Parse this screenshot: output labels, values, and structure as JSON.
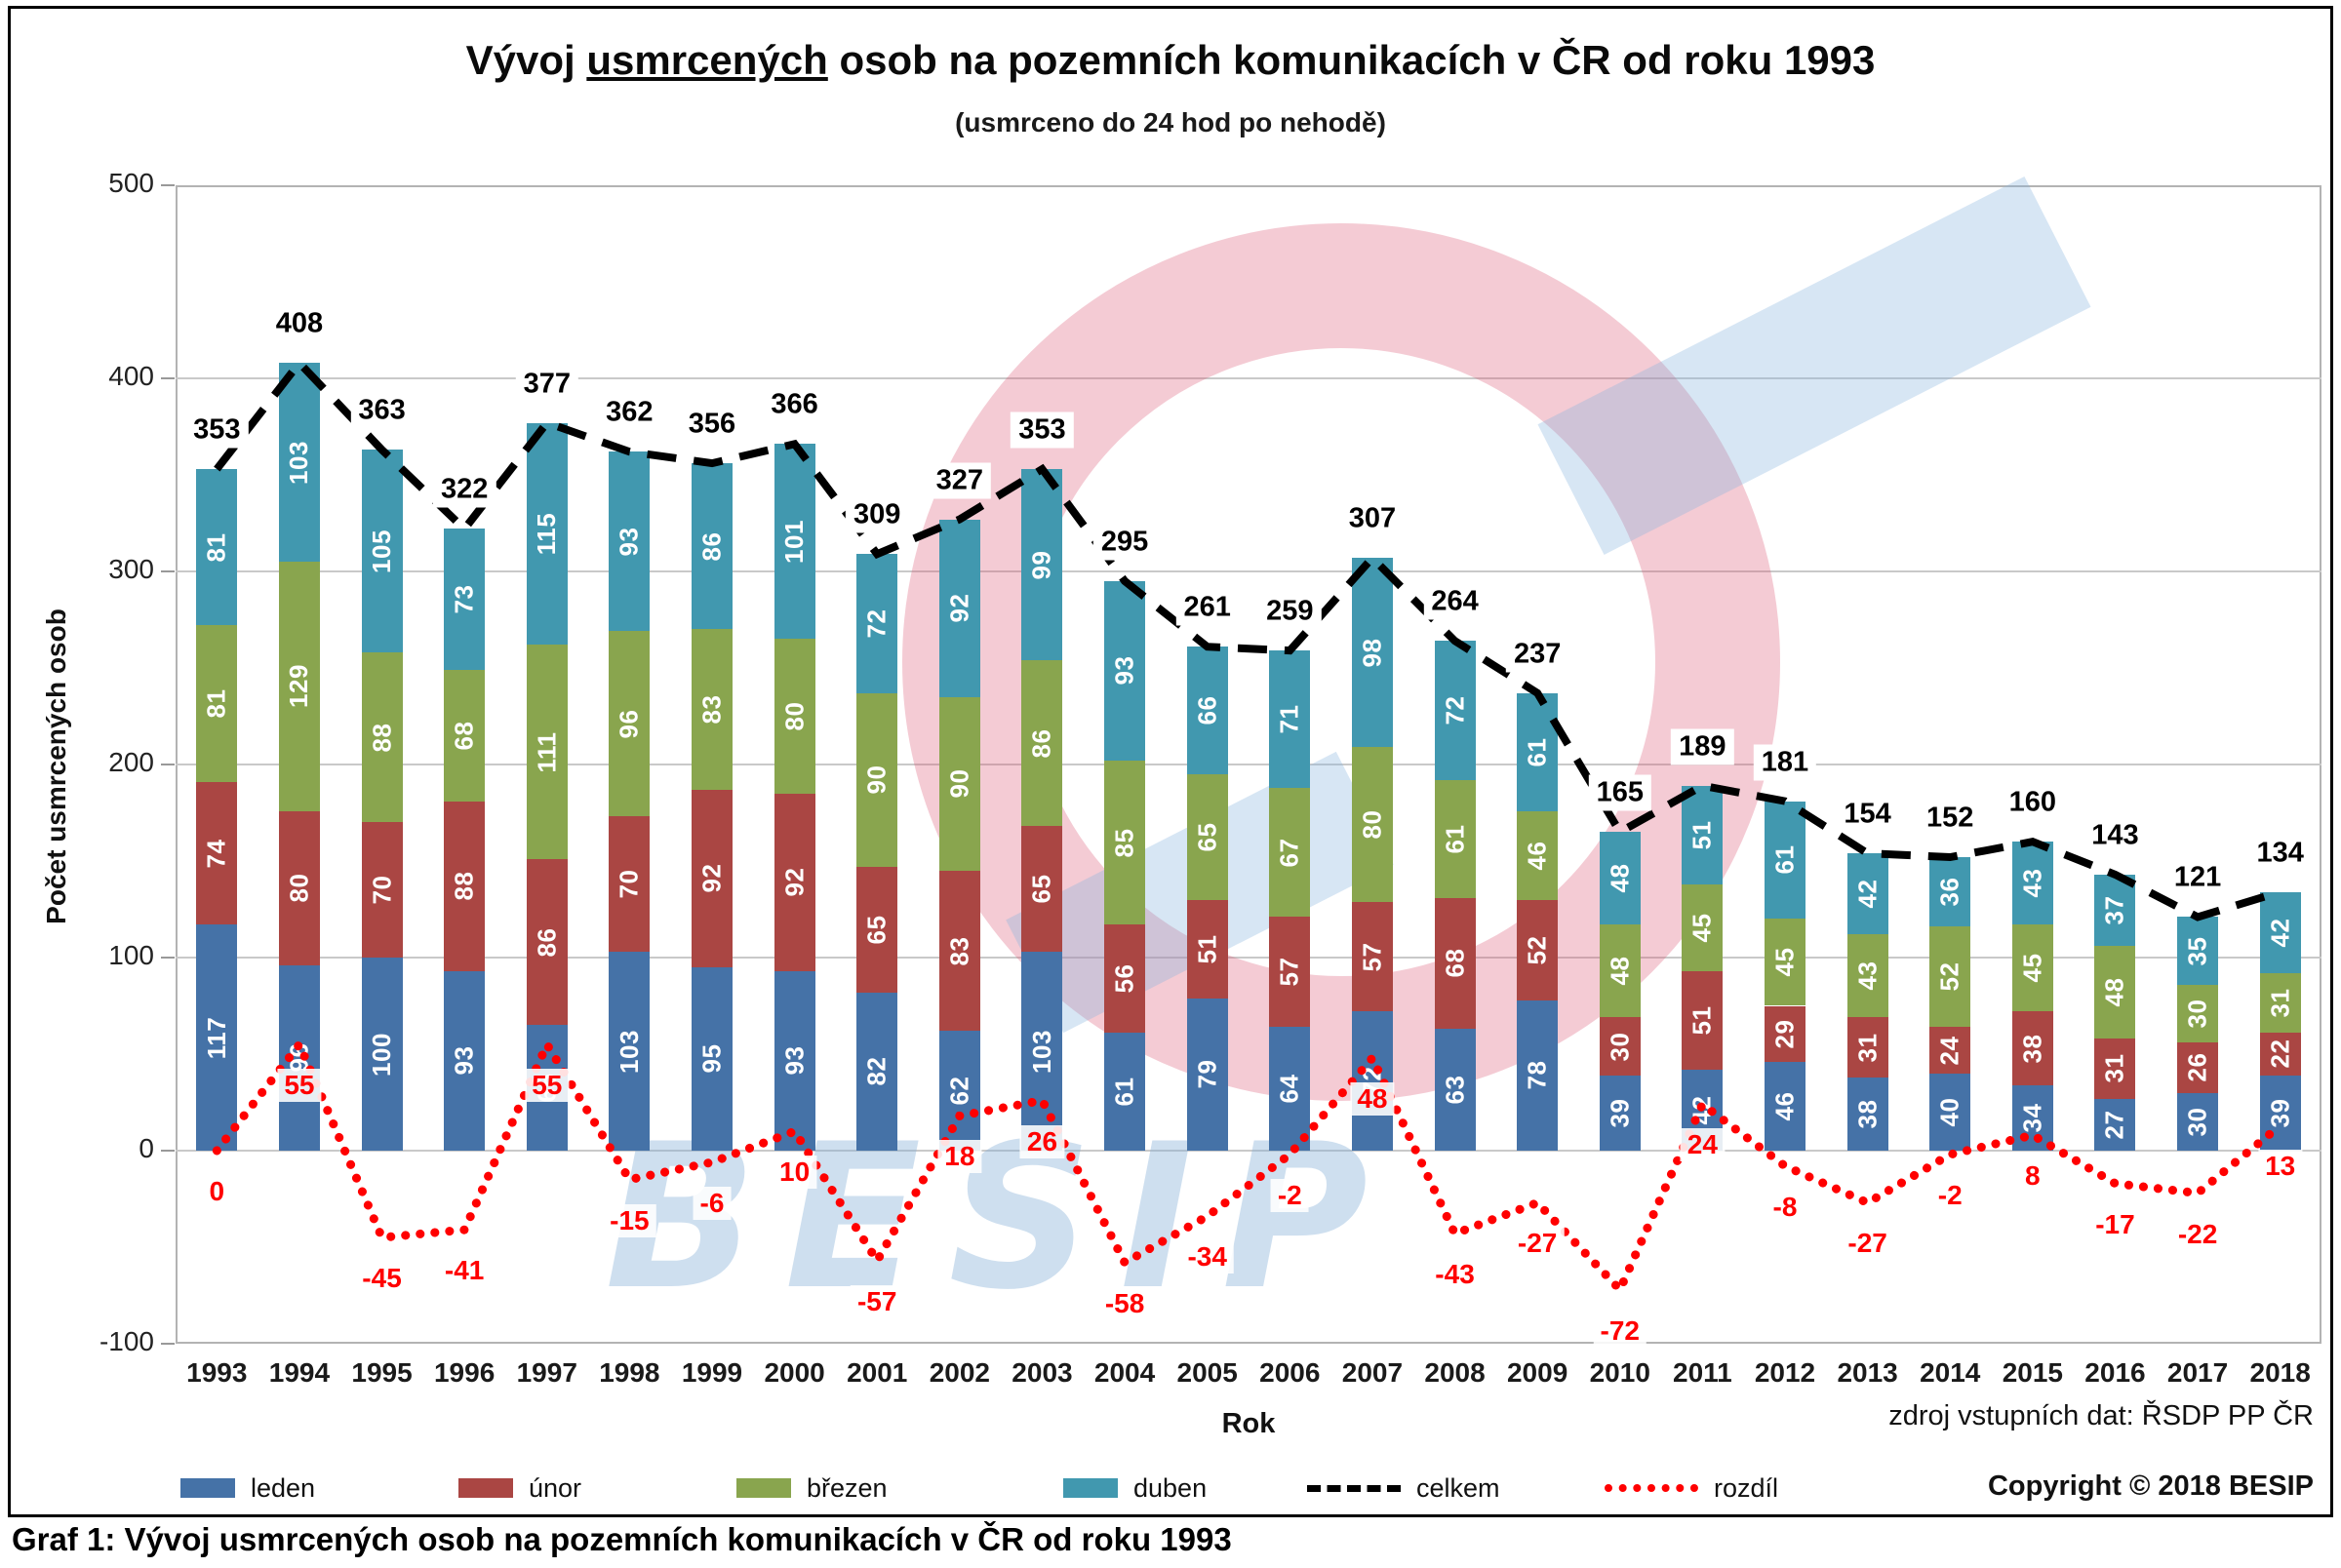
{
  "page": {
    "title_part1": "Vývoj",
    "title_underlined": "usmrcených",
    "title_part2": "osob na pozemních komunikacích v ČR od roku 1993",
    "subtitle": "(usmrceno do 24 hod po nehodě)",
    "source": "zdroj vstupních dat: ŘSDP PP ČR",
    "copyright": "Copyright © 2018 BESIP",
    "caption": "Graf 1: Vývoj usmrcených osob na pozemních komunikacích v ČR od roku 1993",
    "watermark_text": "BESIP"
  },
  "chart_data": {
    "type": "bar",
    "subtype": "stacked-bars-with-total-and-difference-lines",
    "title": "Vývoj usmrcených osob na pozemních komunikacích v ČR od roku 1993",
    "subtitle": "(usmrceno do 24 hod po nehodě)",
    "xlabel": "Rok",
    "ylabel": "Počet usmrcených osob",
    "ylim": [
      -100,
      500
    ],
    "yticks": [
      500,
      400,
      300,
      200,
      100,
      0,
      -100
    ],
    "grid": true,
    "legend_position": "bottom",
    "categories": [
      "1993",
      "1994",
      "1995",
      "1996",
      "1997",
      "1998",
      "1999",
      "2000",
      "2001",
      "2002",
      "2003",
      "2004",
      "2005",
      "2006",
      "2007",
      "2008",
      "2009",
      "2010",
      "2011",
      "2012",
      "2013",
      "2014",
      "2015",
      "2016",
      "2017",
      "2018"
    ],
    "series": [
      {
        "name": "leden",
        "type": "bar",
        "color": "#4572A7",
        "values": [
          117,
          96,
          100,
          93,
          65,
          103,
          95,
          93,
          82,
          62,
          103,
          61,
          79,
          64,
          72,
          63,
          78,
          39,
          42,
          46,
          38,
          40,
          34,
          27,
          30,
          39
        ]
      },
      {
        "name": "únor",
        "type": "bar",
        "color": "#AA4643",
        "values": [
          74,
          80,
          70,
          88,
          86,
          70,
          92,
          92,
          65,
          83,
          65,
          56,
          51,
          57,
          57,
          68,
          52,
          30,
          51,
          29,
          31,
          24,
          38,
          31,
          26,
          22
        ]
      },
      {
        "name": "březen",
        "type": "bar",
        "color": "#89A54E",
        "values": [
          81,
          129,
          88,
          68,
          111,
          96,
          83,
          80,
          90,
          90,
          86,
          85,
          65,
          67,
          80,
          61,
          46,
          48,
          45,
          45,
          43,
          52,
          45,
          48,
          30,
          31
        ]
      },
      {
        "name": "duben",
        "type": "bar",
        "color": "#4198AF",
        "values": [
          81,
          103,
          105,
          73,
          115,
          93,
          86,
          101,
          72,
          92,
          99,
          93,
          66,
          71,
          98,
          72,
          61,
          48,
          51,
          61,
          42,
          36,
          43,
          37,
          35,
          42
        ]
      },
      {
        "name": "celkem",
        "type": "line",
        "style": "dashed",
        "color": "#000000",
        "values": [
          353,
          408,
          363,
          322,
          377,
          362,
          356,
          366,
          309,
          327,
          353,
          295,
          261,
          259,
          307,
          264,
          237,
          165,
          189,
          181,
          154,
          152,
          160,
          143,
          121,
          134
        ]
      },
      {
        "name": "rozdíl",
        "type": "line",
        "style": "dotted",
        "color": "#FF0000",
        "values": [
          0,
          55,
          -45,
          -41,
          55,
          -15,
          -6,
          10,
          -57,
          18,
          26,
          -58,
          -34,
          -2,
          48,
          -43,
          -27,
          -72,
          24,
          -8,
          -27,
          -2,
          8,
          -17,
          -22,
          13
        ]
      }
    ]
  }
}
